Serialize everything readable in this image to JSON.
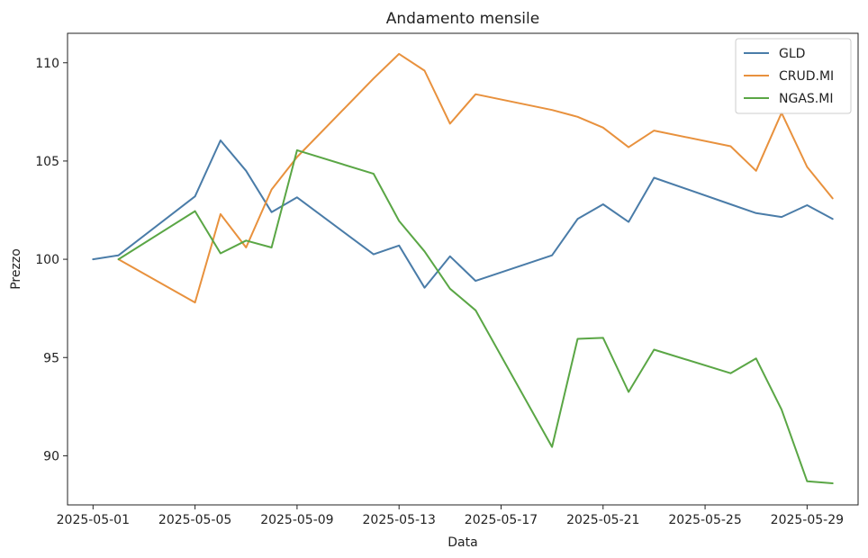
{
  "chart_data": {
    "type": "line",
    "title": "Andamento mensile",
    "xlabel": "Data",
    "ylabel": "Prezzo",
    "x": [
      "2025-05-01",
      "2025-05-02",
      "2025-05-05",
      "2025-05-06",
      "2025-05-07",
      "2025-05-08",
      "2025-05-09",
      "2025-05-12",
      "2025-05-13",
      "2025-05-14",
      "2025-05-15",
      "2025-05-16",
      "2025-05-19",
      "2025-05-20",
      "2025-05-21",
      "2025-05-22",
      "2025-05-23",
      "2025-05-26",
      "2025-05-27",
      "2025-05-28",
      "2025-05-29",
      "2025-05-30"
    ],
    "xlim": [
      "2025-04-30",
      "2025-05-31"
    ],
    "ylim": [
      87.5,
      111.5
    ],
    "xticks": [
      "2025-05-01",
      "2025-05-05",
      "2025-05-09",
      "2025-05-13",
      "2025-05-17",
      "2025-05-21",
      "2025-05-25",
      "2025-05-29"
    ],
    "yticks": [
      90,
      95,
      100,
      105,
      110
    ],
    "grid": false,
    "legend_position": "top-right",
    "series": [
      {
        "name": "GLD",
        "color": "#4a7ca8",
        "values": [
          100.0,
          100.2,
          103.2,
          106.05,
          104.5,
          102.4,
          103.15,
          100.25,
          100.7,
          98.55,
          100.15,
          98.9,
          100.2,
          102.05,
          102.8,
          101.9,
          104.15,
          102.8,
          102.35,
          102.15,
          102.75,
          102.05
        ]
      },
      {
        "name": "CRUD.MI",
        "color": "#e8913d",
        "values": [
          null,
          100.0,
          97.8,
          102.3,
          100.6,
          103.55,
          105.2,
          109.2,
          110.45,
          109.6,
          106.9,
          108.4,
          107.6,
          107.25,
          106.7,
          105.7,
          106.55,
          105.75,
          104.5,
          107.45,
          104.7,
          103.1
        ]
      },
      {
        "name": "NGAS.MI",
        "color": "#5aa645",
        "values": [
          null,
          100.0,
          102.45,
          100.3,
          100.95,
          100.6,
          105.55,
          104.35,
          101.95,
          100.4,
          98.5,
          97.4,
          90.45,
          95.95,
          96.0,
          93.25,
          95.4,
          94.2,
          94.95,
          92.35,
          88.7,
          88.6
        ]
      }
    ]
  }
}
